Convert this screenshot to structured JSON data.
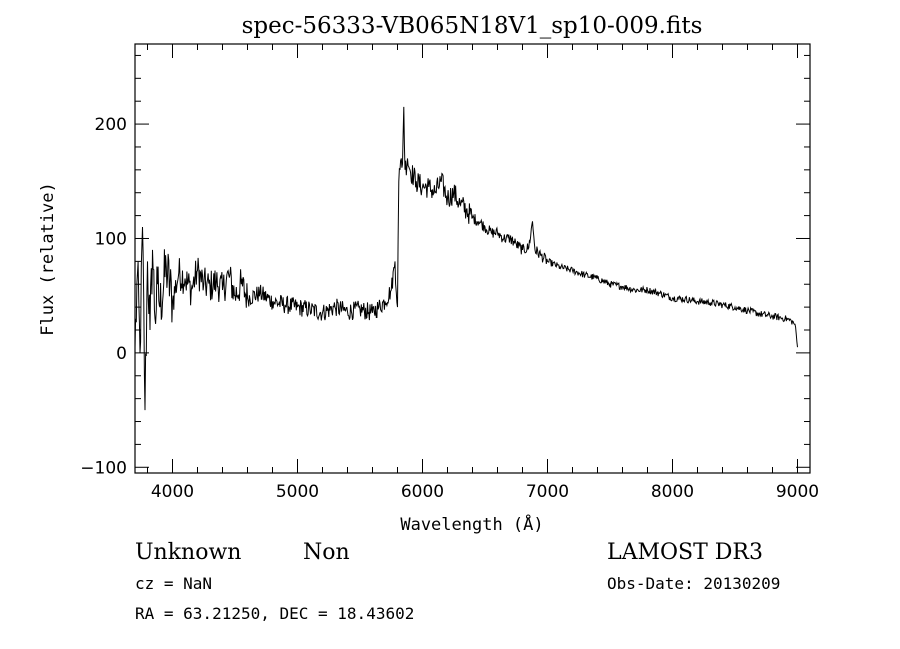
{
  "chart_data": {
    "type": "line",
    "title": "spec-56333-VB065N18V1_sp10-009.fits",
    "xlabel": "Wavelength (Å)",
    "ylabel": "Flux (relative)",
    "xlim": [
      3700,
      9100
    ],
    "ylim": [
      -105,
      270
    ],
    "x_ticks": [
      4000,
      5000,
      6000,
      7000,
      8000,
      9000
    ],
    "y_ticks": [
      -100,
      0,
      100,
      200
    ],
    "grid": false,
    "series": [
      {
        "x": [
          3700,
          3720,
          3740,
          3760,
          3780,
          3800,
          3820,
          3840,
          3860,
          3880,
          3900,
          3950,
          4000,
          4050,
          4100,
          4150,
          4200,
          4250,
          4300,
          4350,
          4400,
          4450,
          4500,
          4550,
          4600,
          4700,
          4800,
          4900,
          5000,
          5100,
          5200,
          5300,
          5400,
          5500,
          5600,
          5650,
          5700,
          5750,
          5780,
          5800,
          5810,
          5820,
          5830,
          5840,
          5850,
          5860,
          5880,
          5900,
          5950,
          6000,
          6050,
          6100,
          6150,
          6200,
          6250,
          6300,
          6350,
          6400,
          6450,
          6500,
          6550,
          6600,
          6650,
          6700,
          6750,
          6800,
          6850,
          6880,
          6900,
          6950,
          7000,
          7100,
          7200,
          7300,
          7400,
          7500,
          7600,
          7700,
          7800,
          7900,
          8000,
          8100,
          8200,
          8300,
          8400,
          8500,
          8600,
          8700,
          8800,
          8900,
          8950,
          8980,
          9000
        ],
        "y": [
          5,
          70,
          0,
          110,
          -50,
          80,
          20,
          90,
          30,
          60,
          40,
          75,
          45,
          70,
          65,
          55,
          72,
          60,
          58,
          62,
          55,
          68,
          50,
          60,
          48,
          52,
          45,
          42,
          40,
          38,
          35,
          40,
          36,
          38,
          35,
          40,
          45,
          55,
          80,
          40,
          150,
          160,
          170,
          165,
          215,
          160,
          170,
          160,
          150,
          145,
          145,
          140,
          150,
          135,
          140,
          130,
          125,
          118,
          115,
          110,
          105,
          105,
          100,
          100,
          95,
          90,
          92,
          115,
          90,
          85,
          80,
          75,
          72,
          68,
          65,
          60,
          58,
          55,
          55,
          52,
          48,
          47,
          45,
          44,
          42,
          40,
          37,
          34,
          32,
          30,
          28,
          25,
          5
        ]
      }
    ]
  },
  "info": {
    "class_label": "Unknown",
    "subclass_label": "Non",
    "survey": "LAMOST DR3",
    "cz": "cz = NaN",
    "obs_date": "Obs-Date: 20130209",
    "coords": "RA =  63.21250, DEC =  18.43602"
  }
}
